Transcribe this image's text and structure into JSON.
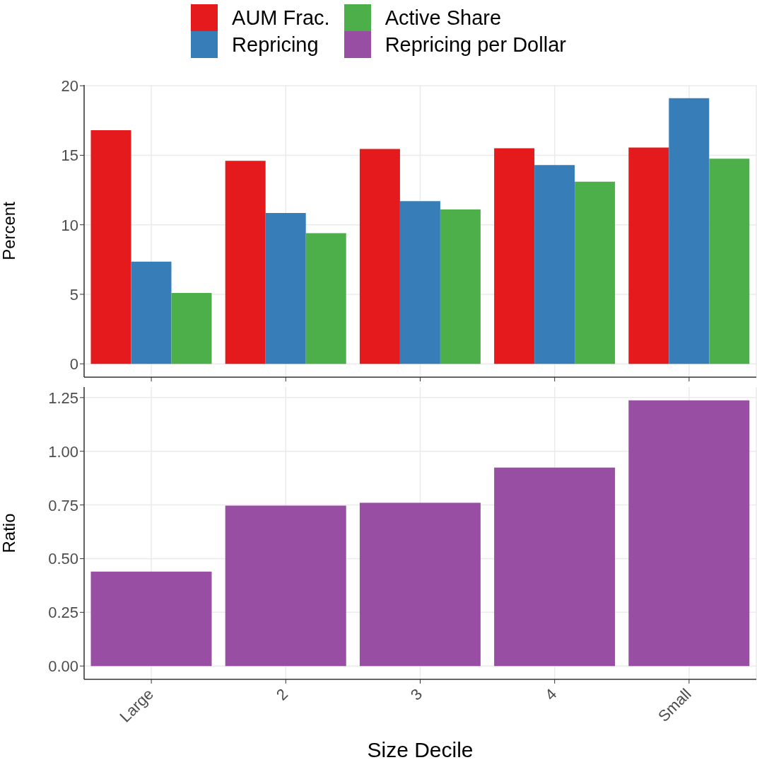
{
  "chart_data": [
    {
      "type": "bar",
      "ylabel": "Percent",
      "categories": [
        null,
        null,
        null,
        null,
        null
      ],
      "ylim": [
        -0.96,
        20.06
      ],
      "yticks": [
        0,
        5,
        10,
        15,
        20
      ],
      "grid": true,
      "legend": "top",
      "tick_labels": "y",
      "series": [
        {
          "name": "AUM Frac.",
          "color": "#e41a1c",
          "values": [
            16.8,
            14.6,
            15.45,
            15.5,
            15.55
          ]
        },
        {
          "name": "Repricing",
          "color": "#377eb8",
          "values": [
            7.35,
            10.85,
            11.7,
            14.3,
            19.1
          ]
        },
        {
          "name": "Active Share",
          "color": "#4daf4a",
          "values": [
            5.1,
            9.4,
            11.1,
            13.1,
            14.75
          ]
        }
      ]
    },
    {
      "type": "bar",
      "ylabel": "Ratio",
      "xlabel": "Size Decile",
      "categories": [
        "Large",
        "2",
        "3",
        "4",
        "Small"
      ],
      "ylim": [
        -0.062,
        1.299
      ],
      "yticks": [
        {
          "value": 0,
          "label": "0.00"
        },
        {
          "value": 0.25,
          "label": "0.25"
        },
        {
          "value": 0.5,
          "label": "0.50"
        },
        {
          "value": 0.75,
          "label": "0.75"
        },
        {
          "value": 1,
          "label": "1.00"
        },
        {
          "value": 1.25,
          "label": "1.25"
        }
      ],
      "grid": true,
      "legend": "top",
      "series": [
        {
          "name": "Repricing per Dollar",
          "color": "#984ea3",
          "values": [
            0.44,
            0.747,
            0.76,
            0.924,
            1.237
          ]
        }
      ]
    }
  ]
}
